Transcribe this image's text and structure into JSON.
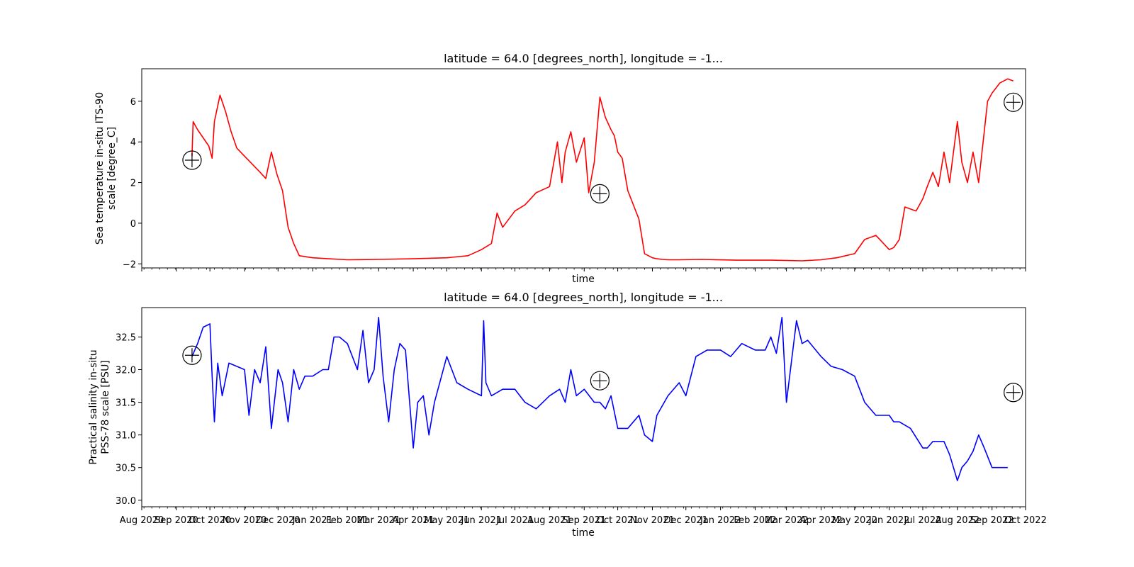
{
  "chart_data": [
    {
      "type": "line",
      "title": "latitude = 64.0 [degrees_north], longitude = -1...",
      "xlabel": "time",
      "ylabel_lines": [
        "Sea temperature in-situ ITS-90",
        "scale [degree_C]"
      ],
      "xlim": [
        "2020-08-01",
        "2022-10-01"
      ],
      "ylim": [
        -2.2,
        7.6
      ],
      "yticks": [
        -2,
        0,
        2,
        4,
        6
      ],
      "ytick_labels": [
        "−2",
        "0",
        "2",
        "4",
        "6"
      ],
      "show_xtick_labels": false,
      "grid": false,
      "series": [
        {
          "color": "#ff0000",
          "x": [
            "2020-09-15",
            "2020-09-16",
            "2020-09-20",
            "2020-09-25",
            "2020-09-30",
            "2020-10-03",
            "2020-10-05",
            "2020-10-10",
            "2020-10-15",
            "2020-10-20",
            "2020-10-25",
            "2020-11-01",
            "2020-11-08",
            "2020-11-15",
            "2020-11-20",
            "2020-11-25",
            "2020-11-30",
            "2020-12-05",
            "2020-12-10",
            "2020-12-15",
            "2020-12-20",
            "2021-01-01",
            "2021-01-15",
            "2021-02-01",
            "2021-03-01",
            "2021-04-01",
            "2021-05-01",
            "2021-05-20",
            "2021-06-01",
            "2021-06-10",
            "2021-06-15",
            "2021-06-20",
            "2021-07-01",
            "2021-07-10",
            "2021-07-20",
            "2021-08-01",
            "2021-08-08",
            "2021-08-12",
            "2021-08-15",
            "2021-08-20",
            "2021-08-25",
            "2021-09-01",
            "2021-09-05",
            "2021-09-10",
            "2021-09-15",
            "2021-09-20",
            "2021-09-25",
            "2021-09-28",
            "2021-10-01",
            "2021-10-05",
            "2021-10-10",
            "2021-10-20",
            "2021-10-25",
            "2021-11-01",
            "2021-11-05",
            "2021-11-10",
            "2021-11-15",
            "2021-11-25",
            "2021-12-15",
            "2022-01-15",
            "2022-02-15",
            "2022-03-15",
            "2022-04-01",
            "2022-04-15",
            "2022-05-01",
            "2022-05-10",
            "2022-05-20",
            "2022-06-01",
            "2022-06-05",
            "2022-06-10",
            "2022-06-15",
            "2022-06-25",
            "2022-07-01",
            "2022-07-05",
            "2022-07-10",
            "2022-07-15",
            "2022-07-20",
            "2022-07-25",
            "2022-08-01",
            "2022-08-05",
            "2022-08-10",
            "2022-08-15",
            "2022-08-20",
            "2022-08-25",
            "2022-08-28",
            "2022-09-01",
            "2022-09-08",
            "2022-09-15",
            "2022-09-20"
          ],
          "y": [
            3.3,
            5.0,
            4.6,
            4.2,
            3.8,
            3.2,
            5.0,
            6.3,
            5.5,
            4.5,
            3.7,
            3.3,
            2.9,
            2.5,
            2.2,
            3.5,
            2.4,
            1.6,
            -0.2,
            -1.0,
            -1.6,
            -1.7,
            -1.75,
            -1.8,
            -1.78,
            -1.75,
            -1.7,
            -1.6,
            -1.3,
            -1.0,
            0.5,
            -0.2,
            0.6,
            0.9,
            1.5,
            1.8,
            4.0,
            2.0,
            3.5,
            4.5,
            3.0,
            4.2,
            1.5,
            3.0,
            6.2,
            5.2,
            4.6,
            4.3,
            3.5,
            3.2,
            1.6,
            0.2,
            -1.5,
            -1.7,
            -1.75,
            -1.78,
            -1.8,
            -1.8,
            -1.78,
            -1.82,
            -1.82,
            -1.85,
            -1.8,
            -1.7,
            -1.5,
            -0.8,
            -0.6,
            -1.3,
            -1.2,
            -0.8,
            0.8,
            0.6,
            1.2,
            1.8,
            2.5,
            1.8,
            3.5,
            2.0,
            5.0,
            3.0,
            2.0,
            3.5,
            2.0,
            4.5,
            6.0,
            6.4,
            6.9,
            7.1,
            7.0
          ]
        }
      ],
      "markers": [
        {
          "x": "2020-09-15",
          "y": 3.1
        },
        {
          "x": "2021-09-15",
          "y": 1.45
        },
        {
          "x": "2022-09-20",
          "y": 5.95
        }
      ]
    },
    {
      "type": "line",
      "title": "latitude = 64.0 [degrees_north], longitude = -1...",
      "xlabel": "time",
      "ylabel_lines": [
        "Practical salinity in-situ",
        "PSS-78 scale [PSU]"
      ],
      "xlim": [
        "2020-08-01",
        "2022-10-01"
      ],
      "ylim": [
        29.9,
        32.95
      ],
      "yticks": [
        30.0,
        30.5,
        31.0,
        31.5,
        32.0,
        32.5
      ],
      "ytick_labels": [
        "30.0",
        "30.5",
        "31.0",
        "31.5",
        "32.0",
        "32.5"
      ],
      "xticks": [
        "2020-08-01",
        "2020-09-01",
        "2020-10-01",
        "2020-11-01",
        "2020-12-01",
        "2021-01-01",
        "2021-02-01",
        "2021-03-01",
        "2021-04-01",
        "2021-05-01",
        "2021-06-01",
        "2021-07-01",
        "2021-08-01",
        "2021-09-01",
        "2021-10-01",
        "2021-11-01",
        "2021-12-01",
        "2022-01-01",
        "2022-02-01",
        "2022-03-01",
        "2022-04-01",
        "2022-05-01",
        "2022-06-01",
        "2022-07-01",
        "2022-08-01",
        "2022-09-01",
        "2022-10-01"
      ],
      "xtick_labels": [
        "Aug 2020",
        "Sep 2020",
        "Oct 2020",
        "Nov 2020",
        "Dec 2020",
        "Jan 2021",
        "Feb 2021",
        "Mar 2021",
        "Apr 2021",
        "May 2021",
        "Jun 2021",
        "Jul 2021",
        "Aug 2021",
        "Sep 2021",
        "Oct 2021",
        "Nov 2021",
        "Dec 2021",
        "Jan 2022",
        "Feb 2022",
        "Mar 2022",
        "Apr 2022",
        "May 2022",
        "Jun 2022",
        "Jul 2022",
        "Aug 2022",
        "Sep 2022",
        "Oct 2022"
      ],
      "grid": false,
      "series": [
        {
          "color": "#0000ff",
          "x": [
            "2020-09-15",
            "2020-09-20",
            "2020-09-25",
            "2020-10-01",
            "2020-10-03",
            "2020-10-05",
            "2020-10-08",
            "2020-10-12",
            "2020-10-18",
            "2020-10-25",
            "2020-11-01",
            "2020-11-05",
            "2020-11-10",
            "2020-11-15",
            "2020-11-20",
            "2020-11-25",
            "2020-12-01",
            "2020-12-05",
            "2020-12-10",
            "2020-12-15",
            "2020-12-20",
            "2020-12-25",
            "2021-01-01",
            "2021-01-10",
            "2021-01-15",
            "2021-01-20",
            "2021-01-25",
            "2021-02-01",
            "2021-02-10",
            "2021-02-15",
            "2021-02-20",
            "2021-02-25",
            "2021-03-01",
            "2021-03-05",
            "2021-03-10",
            "2021-03-15",
            "2021-03-20",
            "2021-03-25",
            "2021-04-01",
            "2021-04-05",
            "2021-04-10",
            "2021-04-15",
            "2021-04-20",
            "2021-05-01",
            "2021-05-10",
            "2021-05-20",
            "2021-06-01",
            "2021-06-03",
            "2021-06-05",
            "2021-06-10",
            "2021-06-20",
            "2021-07-01",
            "2021-07-10",
            "2021-07-20",
            "2021-08-01",
            "2021-08-10",
            "2021-08-15",
            "2021-08-20",
            "2021-08-25",
            "2021-09-01",
            "2021-09-10",
            "2021-09-15",
            "2021-09-20",
            "2021-09-25",
            "2021-10-01",
            "2021-10-10",
            "2021-10-20",
            "2021-10-25",
            "2021-11-01",
            "2021-11-05",
            "2021-11-15",
            "2021-11-25",
            "2021-12-01",
            "2021-12-10",
            "2021-12-20",
            "2022-01-01",
            "2022-01-10",
            "2022-01-15",
            "2022-01-20",
            "2022-02-01",
            "2022-02-10",
            "2022-02-15",
            "2022-02-20",
            "2022-02-25",
            "2022-03-01",
            "2022-03-10",
            "2022-03-15",
            "2022-03-20",
            "2022-04-01",
            "2022-04-10",
            "2022-04-20",
            "2022-05-01",
            "2022-05-10",
            "2022-05-20",
            "2022-06-01",
            "2022-06-05",
            "2022-06-10",
            "2022-06-20",
            "2022-07-01",
            "2022-07-05",
            "2022-07-10",
            "2022-07-20",
            "2022-07-25",
            "2022-08-01",
            "2022-08-05",
            "2022-08-10",
            "2022-08-15",
            "2022-08-20",
            "2022-08-25",
            "2022-09-01",
            "2022-09-05",
            "2022-09-10",
            "2022-09-15"
          ],
          "y": [
            32.2,
            32.4,
            32.65,
            32.7,
            31.9,
            31.2,
            32.1,
            31.6,
            32.1,
            32.05,
            32.0,
            31.3,
            32.0,
            31.8,
            32.35,
            31.1,
            32.0,
            31.8,
            31.2,
            32.0,
            31.7,
            31.9,
            31.9,
            32.0,
            32.0,
            32.5,
            32.5,
            32.4,
            32.0,
            32.6,
            31.8,
            32.0,
            32.8,
            31.9,
            31.2,
            32.0,
            32.4,
            32.3,
            30.8,
            31.5,
            31.6,
            31.0,
            31.5,
            32.2,
            31.8,
            31.7,
            31.6,
            32.75,
            31.8,
            31.6,
            31.7,
            31.7,
            31.5,
            31.4,
            31.6,
            31.7,
            31.5,
            32.0,
            31.6,
            31.7,
            31.5,
            31.5,
            31.4,
            31.6,
            31.1,
            31.1,
            31.3,
            31.0,
            30.9,
            31.3,
            31.6,
            31.8,
            31.6,
            32.2,
            32.3,
            32.3,
            32.2,
            32.3,
            32.4,
            32.3,
            32.3,
            32.5,
            32.25,
            32.8,
            31.5,
            32.75,
            32.4,
            32.45,
            32.2,
            32.05,
            32.0,
            31.9,
            31.5,
            31.3,
            31.3,
            31.2,
            31.2,
            31.1,
            30.8,
            30.8,
            30.9,
            30.9,
            30.7,
            30.3,
            30.5,
            30.6,
            30.75,
            31.0,
            30.8,
            30.5,
            30.5,
            30.5,
            30.5
          ]
        }
      ],
      "markers": [
        {
          "x": "2020-09-15",
          "y": 32.22
        },
        {
          "x": "2021-09-15",
          "y": 31.83
        },
        {
          "x": "2022-09-20",
          "y": 31.65
        }
      ]
    }
  ]
}
